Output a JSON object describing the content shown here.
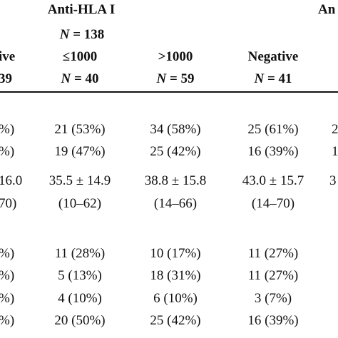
{
  "header": {
    "group_title": "Anti-HLA I",
    "group_title_cut": "An",
    "group_n_label": "N",
    "group_n_value": " = 138",
    "col0_head": "ive",
    "col0_n": "39",
    "columns": [
      {
        "head": "≤1000",
        "n_label": "N",
        "n_value": " = 40"
      },
      {
        "head": ">1000",
        "n_label": "N",
        "n_value": " = 59"
      },
      {
        "head": "Negative",
        "n_label": "N",
        "n_value": " = 41"
      }
    ]
  },
  "rows": [
    {
      "left": "%)",
      "cells": [
        "21 (53%)",
        "34 (58%)",
        "25 (61%)"
      ],
      "right": "2"
    },
    {
      "left": "%)",
      "cells": [
        "19 (47%)",
        "25 (42%)",
        "16 (39%)"
      ],
      "right": "1"
    },
    {
      "left": "16.0",
      "cells": [
        "35.5 ± 14.9",
        "38.8 ± 15.8",
        "43.0 ± 15.7"
      ],
      "right": "3"
    },
    {
      "left": "70)",
      "cells": [
        "(10–62)",
        "(14–66)",
        "(14–70)"
      ],
      "right": ""
    },
    {
      "left": "%)",
      "cells": [
        "11 (28%)",
        "10 (17%)",
        "11 (27%)"
      ],
      "right": ""
    },
    {
      "left": "%)",
      "cells": [
        "5 (13%)",
        "18 (31%)",
        "11 (27%)"
      ],
      "right": ""
    },
    {
      "left": "%)",
      "cells": [
        "4 (10%)",
        "6 (10%)",
        "3 (7%)"
      ],
      "right": ""
    },
    {
      "left": "%)",
      "cells": [
        "20 (50%)",
        "25 (42%)",
        "16 (39%)"
      ],
      "right": ""
    }
  ]
}
